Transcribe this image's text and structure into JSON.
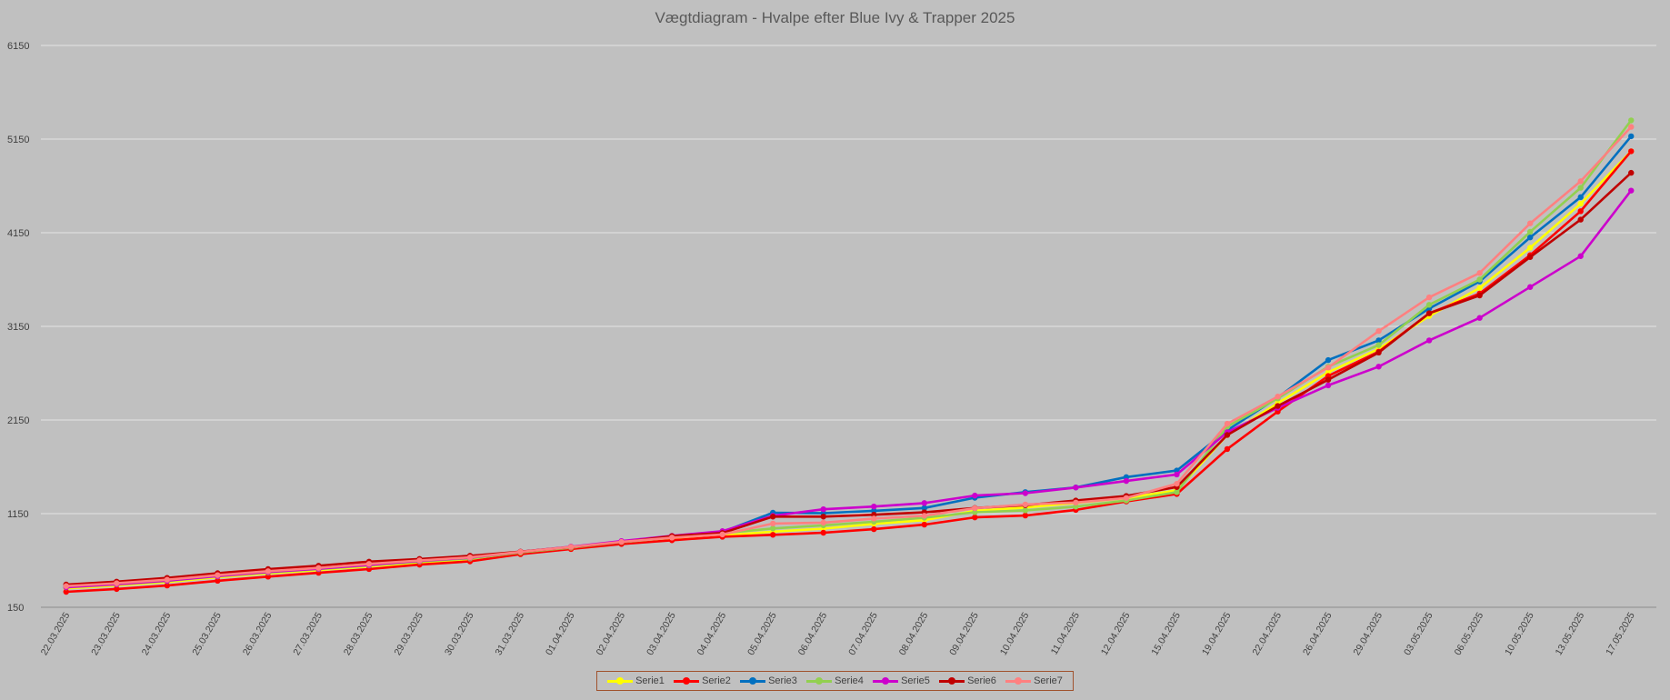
{
  "chart_data": {
    "type": "line",
    "title": "Vægtdiagram - Hvalpe efter Blue Ivy & Trapper 2025",
    "xlabel": "",
    "ylabel": "",
    "ylim": [
      150,
      6150
    ],
    "yticks": [
      150,
      1150,
      2150,
      3150,
      4150,
      5150,
      6150
    ],
    "grid": true,
    "legend_position": "bottom",
    "categories": [
      "22.03.2025",
      "23.03.2025",
      "24.03.2025",
      "25.03.2025",
      "26.03.2025",
      "27.03.2025",
      "28.03.2025",
      "29.03.2025",
      "30.03.2025",
      "31.03.2025",
      "01.04.2025",
      "02.04.2025",
      "03.04.2025",
      "04.04.2025",
      "05.04.2025",
      "06.04.2025",
      "07.04.2025",
      "08.04.2025",
      "09.04.2025",
      "10.04.2025",
      "11.04.2025",
      "12.04.2025",
      "15.04.2025",
      "19.04.2025",
      "22.04.2025",
      "26.04.2025",
      "29.04.2025",
      "03.05.2025",
      "06.05.2025",
      "10.05.2025",
      "13.05.2025",
      "17.05.2025"
    ],
    "series": [
      {
        "name": "Serie1",
        "color": "#ffff00",
        "values": [
          352,
          383,
          420,
          470,
          512,
          547,
          588,
          627,
          660,
          724,
          775,
          830,
          880,
          917,
          958,
          990,
          1040,
          1080,
          1180,
          1215,
          1265,
          1315,
          1400,
          1990,
          2330,
          2660,
          2910,
          3260,
          3560,
          3990,
          4460,
          5020
        ]
      },
      {
        "name": "Serie2",
        "color": "#ff0000",
        "values": [
          315,
          345,
          382,
          433,
          477,
          518,
          558,
          605,
          640,
          717,
          772,
          826,
          866,
          903,
          924,
          946,
          984,
          1033,
          1110,
          1130,
          1190,
          1280,
          1360,
          1840,
          2240,
          2620,
          2880,
          3290,
          3500,
          3910,
          4380,
          5020
        ]
      },
      {
        "name": "Serie3",
        "color": "#0070c0",
        "values": [
          372,
          404,
          440,
          488,
          530,
          565,
          607,
          645,
          680,
          740,
          792,
          848,
          902,
          955,
          1160,
          1155,
          1180,
          1210,
          1320,
          1380,
          1430,
          1540,
          1610,
          2040,
          2390,
          2790,
          3000,
          3340,
          3630,
          4100,
          4530,
          5180
        ]
      },
      {
        "name": "Serie4",
        "color": "#92d050",
        "values": [
          362,
          394,
          430,
          480,
          522,
          557,
          597,
          638,
          670,
          735,
          787,
          843,
          895,
          941,
          992,
          1025,
          1064,
          1106,
          1165,
          1185,
          1225,
          1290,
          1380,
          2080,
          2380,
          2720,
          2950,
          3380,
          3650,
          4160,
          4630,
          5350
        ]
      },
      {
        "name": "Serie5",
        "color": "#cc00cc",
        "values": [
          364,
          396,
          434,
          483,
          527,
          562,
          602,
          645,
          679,
          743,
          797,
          857,
          913,
          963,
          1127,
          1197,
          1226,
          1263,
          1343,
          1368,
          1429,
          1499,
          1568,
          2020,
          2280,
          2520,
          2720,
          3000,
          3240,
          3570,
          3900,
          4600
        ]
      },
      {
        "name": "Serie6",
        "color": "#c00000",
        "values": [
          393,
          424,
          464,
          514,
          558,
          594,
          637,
          666,
          700,
          744,
          793,
          844,
          910,
          943,
          1118,
          1118,
          1138,
          1164,
          1210,
          1240,
          1290,
          1339,
          1434,
          1990,
          2300,
          2580,
          2870,
          3290,
          3480,
          3890,
          4290,
          4790
        ]
      },
      {
        "name": "Serie7",
        "color": "#ff8080",
        "values": [
          376,
          406,
          444,
          493,
          535,
          570,
          613,
          650,
          683,
          742,
          794,
          848,
          894,
          928,
          1044,
          1054,
          1098,
          1128,
          1208,
          1248,
          1268,
          1317,
          1469,
          2110,
          2400,
          2710,
          3100,
          3460,
          3720,
          4250,
          4700,
          5280
        ]
      }
    ]
  }
}
